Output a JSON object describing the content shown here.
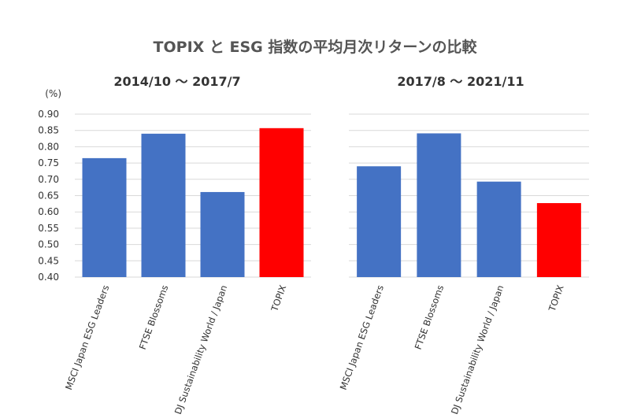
{
  "title": "TOPIX と ESG 指数の平均月次リターンの比較",
  "colors": {
    "esg": "#4472C4",
    "topix": "#FF0000"
  },
  "chart_data": [
    {
      "type": "bar",
      "title": "2014/10 〜 2017/7",
      "unit_label": "(%)",
      "categories": [
        "MSCI Japan ESG Leaders",
        "FTSE Blossoms",
        "DJ Sustainability World / Japan",
        "TOPIX"
      ],
      "values": [
        0.765,
        0.84,
        0.661,
        0.857
      ],
      "ylim": [
        0.4,
        0.9
      ],
      "yticks": [
        "0.40",
        "0.45",
        "0.50",
        "0.55",
        "0.60",
        "0.65",
        "0.70",
        "0.75",
        "0.80",
        "0.85",
        "0.90"
      ],
      "grid": true,
      "bar_colors": [
        "#4472C4",
        "#4472C4",
        "#4472C4",
        "#FF0000"
      ]
    },
    {
      "type": "bar",
      "title": "2017/8 〜 2021/11",
      "categories": [
        "MSCI Japan ESG Leaders",
        "FTSE Blossoms",
        "DJ Sustainability World / Japan",
        "TOPIX"
      ],
      "values": [
        0.74,
        0.841,
        0.693,
        0.627
      ],
      "ylim": [
        0.4,
        0.9
      ],
      "grid": true,
      "bar_colors": [
        "#4472C4",
        "#4472C4",
        "#4472C4",
        "#FF0000"
      ]
    }
  ]
}
